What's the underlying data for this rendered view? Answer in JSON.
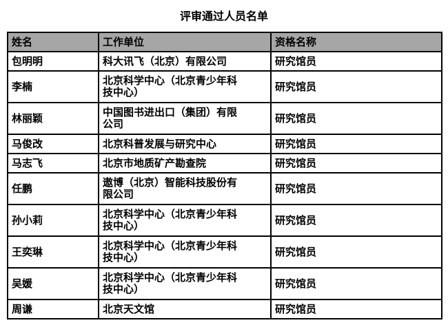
{
  "title": "评审通过人员名单",
  "columns": [
    "姓名",
    "工作单位",
    "资格名称"
  ],
  "rows": [
    {
      "name": "包明明",
      "unit": "科大讯飞（北京）有限公司",
      "qualification": "研究馆员"
    },
    {
      "name": "李楠",
      "unit": "北京科学中心（北京青少年科技中心）",
      "qualification": "研究馆员"
    },
    {
      "name": "林丽颖",
      "unit": "中国图书进出口（集团）有限公司",
      "qualification": "研究馆员"
    },
    {
      "name": "马俊改",
      "unit": "北京科普发展与研究中心",
      "qualification": "研究馆员"
    },
    {
      "name": "马志飞",
      "unit": "北京市地质矿产勘查院",
      "qualification": "研究馆员"
    },
    {
      "name": "任鹏",
      "unit": "遨博（北京）智能科技股份有限公司",
      "qualification": "研究馆员"
    },
    {
      "name": "孙小莉",
      "unit": "北京科学中心（北京青少年科技中心）",
      "qualification": "研究馆员"
    },
    {
      "name": "王奕琳",
      "unit": "北京科学中心（北京青少年科技中心）",
      "qualification": "研究馆员"
    },
    {
      "name": "吴媛",
      "unit": "北京科学中心（北京青少年科技中心）",
      "qualification": "研究馆员"
    },
    {
      "name": "周谦",
      "unit": "北京天文馆",
      "qualification": "研究馆员"
    }
  ],
  "header_bg": "#a6a6a6"
}
